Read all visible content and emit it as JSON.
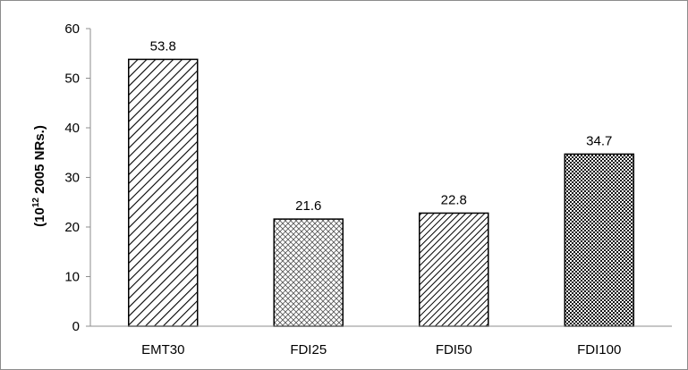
{
  "chart_data": {
    "type": "bar",
    "categories": [
      "EMT30",
      "FDI25",
      "FDI50",
      "FDI100"
    ],
    "values": [
      53.8,
      21.6,
      22.8,
      34.7
    ],
    "data_labels": [
      "53.8",
      "21.6",
      "22.8",
      "34.7"
    ],
    "title": "",
    "xlabel": "",
    "ylabel": {
      "open": "(10",
      "sup": "12",
      "rest": " 2005 NRs.)"
    },
    "ylim": [
      0,
      60
    ],
    "yticks": [
      0,
      10,
      20,
      30,
      40,
      50,
      60
    ],
    "grid": false,
    "legend": "none",
    "bar_patterns": [
      "diag-wide",
      "crosshatch",
      "diag-narrow",
      "dots-dense"
    ],
    "colors": {
      "bar_stroke": "#000000",
      "axis": "#8c8c8c",
      "pattern": "#000000"
    }
  }
}
